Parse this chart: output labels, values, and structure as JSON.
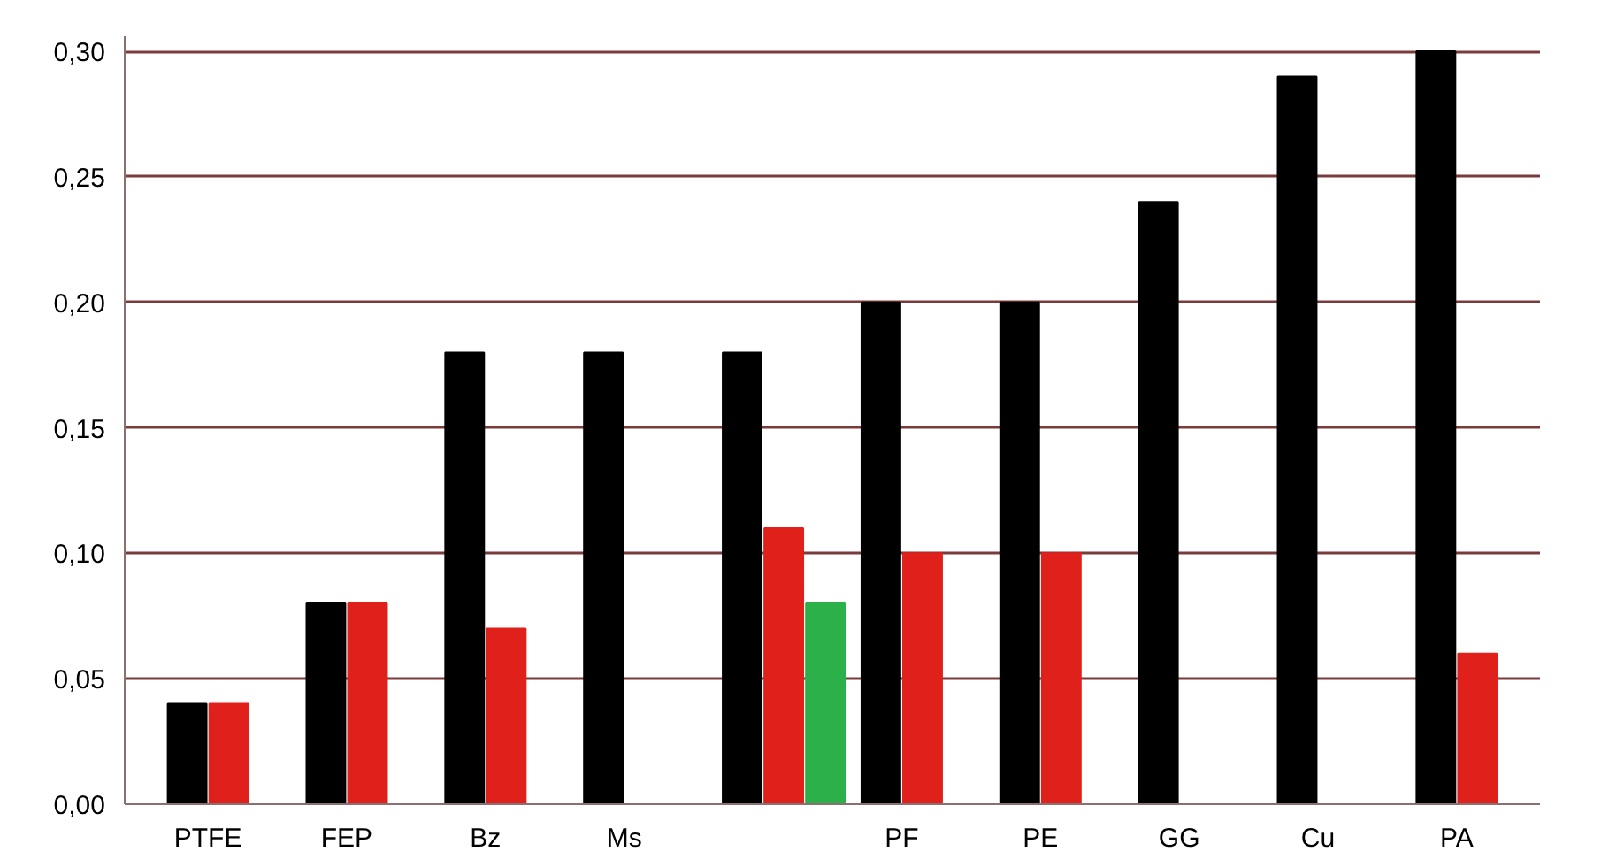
{
  "chart_data": {
    "type": "bar",
    "categories": [
      "PTFE",
      "FEP",
      "Bz",
      "Ms",
      null,
      "PF",
      "PE",
      "GG",
      "Cu",
      "PA"
    ],
    "series": [
      {
        "color": "#000000",
        "values": [
          0.04,
          0.08,
          0.18,
          0.18,
          0.18,
          0.2,
          0.2,
          0.24,
          0.29,
          0.3
        ]
      },
      {
        "color": "#e0201b",
        "values": [
          0.04,
          0.08,
          0.07,
          0.0,
          0.11,
          0.1,
          0.1,
          null,
          null,
          0.06
        ]
      },
      {
        "color": "#2bb04a",
        "values": [
          null,
          null,
          null,
          null,
          0.08,
          null,
          null,
          null,
          null,
          null
        ]
      }
    ],
    "ylim": [
      0,
      0.3
    ],
    "yticks": [
      {
        "value": 0,
        "label": "0,00"
      },
      {
        "value": 0.05,
        "label": "0,05"
      },
      {
        "value": 0.1,
        "label": "0,10"
      },
      {
        "value": 0.15,
        "label": "0,15"
      },
      {
        "value": 0.2,
        "label": "0,20"
      },
      {
        "value": 0.25,
        "label": "0,25"
      },
      {
        "value": 0.3,
        "label": "0,30"
      }
    ],
    "grid": "y"
  }
}
